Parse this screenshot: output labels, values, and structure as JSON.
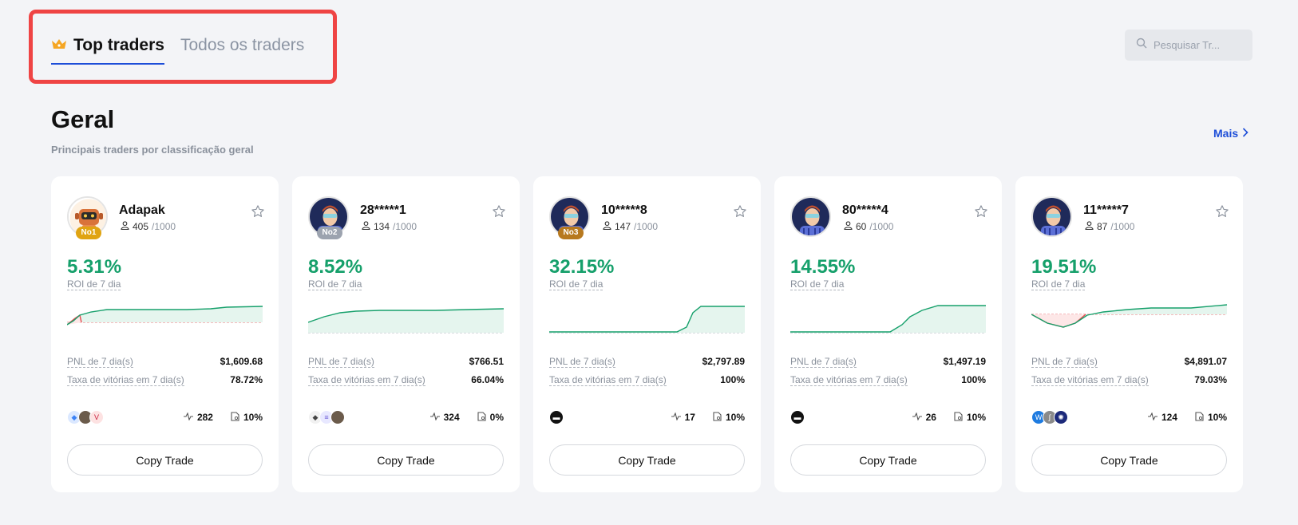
{
  "tabs": [
    {
      "label": "Top traders",
      "icon": "crown-icon",
      "active": true
    },
    {
      "label": "Todos os traders",
      "active": false
    }
  ],
  "search": {
    "placeholder": "Pesquisar Tr..."
  },
  "section": {
    "title": "Geral",
    "subtitle": "Principais traders por classificação geral",
    "more_label": "Mais"
  },
  "cards": [
    {
      "name": "Adapak",
      "rank": "No1",
      "rank_color": "#e0a412",
      "followers": "405",
      "followers_cap": "/1000",
      "roi": "5.31%",
      "roi_label": "ROI de 7 dia",
      "pnl_label": "PNL de 7 dia(s)",
      "pnl": "$1,609.68",
      "winrate_label": "Taxa de vitórias em 7 dia(s)",
      "winrate": "78.72%",
      "trades": "282",
      "profit_share": "10%",
      "copy_label": "Copy Trade"
    },
    {
      "name": "28*****1",
      "rank": "No2",
      "rank_color": "#9ca3af",
      "followers": "134",
      "followers_cap": "/1000",
      "roi": "8.52%",
      "roi_label": "ROI de 7 dia",
      "pnl_label": "PNL de 7 dia(s)",
      "pnl": "$766.51",
      "winrate_label": "Taxa de vitórias em 7 dia(s)",
      "winrate": "66.04%",
      "trades": "324",
      "profit_share": "0%",
      "copy_label": "Copy Trade"
    },
    {
      "name": "10*****8",
      "rank": "No3",
      "rank_color": "#b7791f",
      "followers": "147",
      "followers_cap": "/1000",
      "roi": "32.15%",
      "roi_label": "ROI de 7 dia",
      "pnl_label": "PNL de 7 dia(s)",
      "pnl": "$2,797.89",
      "winrate_label": "Taxa de vitórias em 7 dia(s)",
      "winrate": "100%",
      "trades": "17",
      "profit_share": "10%",
      "copy_label": "Copy Trade"
    },
    {
      "name": "80*****4",
      "rank": "",
      "rank_color": "",
      "followers": "60",
      "followers_cap": "/1000",
      "roi": "14.55%",
      "roi_label": "ROI de 7 dia",
      "pnl_label": "PNL de 7 dia(s)",
      "pnl": "$1,497.19",
      "winrate_label": "Taxa de vitórias em 7 dia(s)",
      "winrate": "100%",
      "trades": "26",
      "profit_share": "10%",
      "copy_label": "Copy Trade"
    },
    {
      "name": "11*****7",
      "rank": "",
      "rank_color": "",
      "followers": "87",
      "followers_cap": "/1000",
      "roi": "19.51%",
      "roi_label": "ROI de 7 dia",
      "pnl_label": "PNL de 7 dia(s)",
      "pnl": "$4,891.07",
      "winrate_label": "Taxa de vitórias em 7 dia(s)",
      "winrate": "79.03%",
      "trades": "124",
      "profit_share": "10%",
      "copy_label": "Copy Trade"
    }
  ],
  "colors": {
    "accent": "#1d4ed8",
    "gain": "#16a06b",
    "loss": "#e5484d",
    "highlight_box": "#ef4444"
  }
}
